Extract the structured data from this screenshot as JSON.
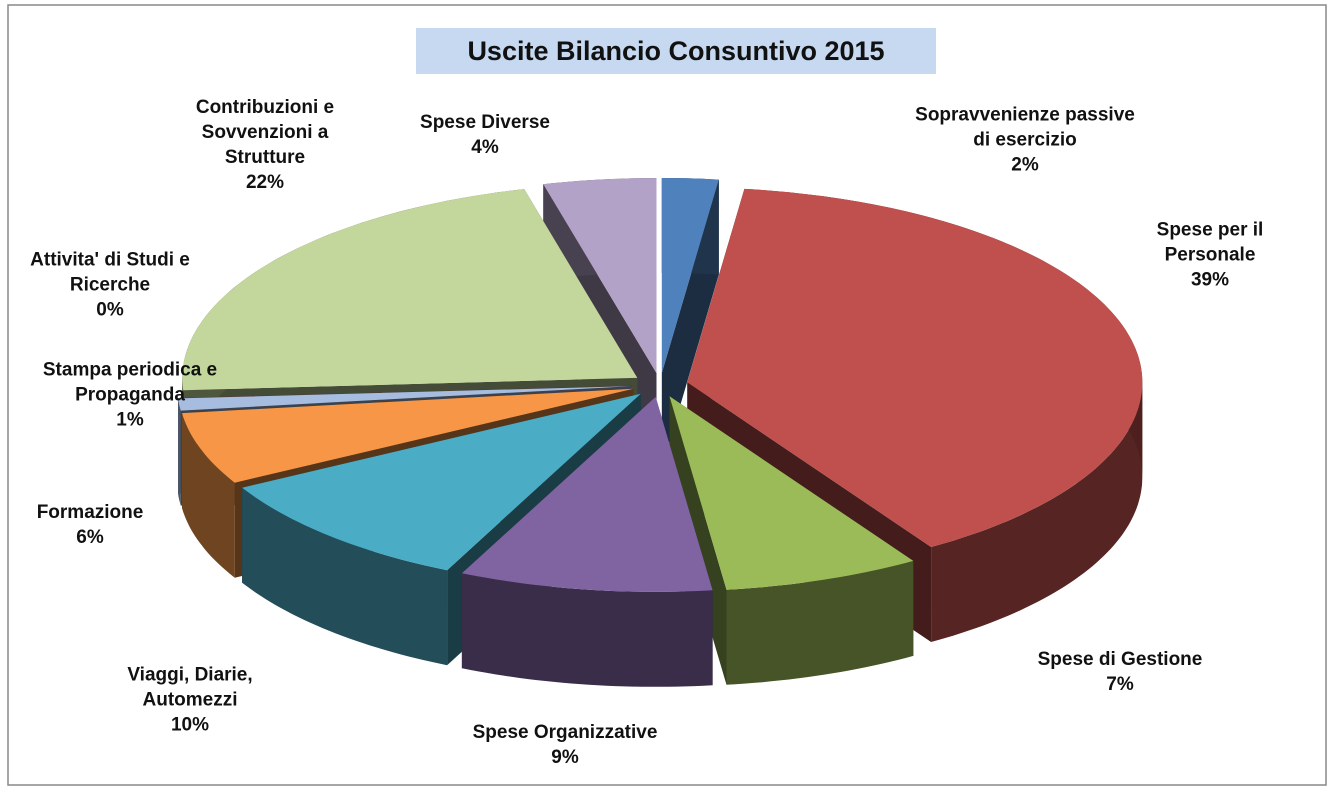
{
  "chart_data": {
    "type": "pie3d",
    "title": "Uscite Bilancio Consuntivo 2015",
    "categories": [
      "Sopravvenienze passive di esercizio",
      "Spese per il Personale",
      "Spese di Gestione",
      "Spese Organizzative",
      "Viaggi, Diarie, Automezzi",
      "Formazione",
      "Stampa periodica e Propaganda",
      "Attivita' di Studi e Ricerche",
      "Contribuzioni e Sovvenzioni a Strutture",
      "Spese Diverse"
    ],
    "values": [
      2,
      39,
      7,
      9,
      10,
      6,
      1,
      0,
      22,
      4
    ],
    "value_labels": [
      "2%",
      "39%",
      "7%",
      "9%",
      "10%",
      "6%",
      "1%",
      "0%",
      "22%",
      "4%"
    ],
    "colors": [
      "#4f81bd",
      "#c0504d",
      "#9bbb59",
      "#8064a2",
      "#4bacc6",
      "#f79646",
      "#a7bde0",
      "#e6a0a0",
      "#c3d69b",
      "#b3a2c7"
    ]
  }
}
